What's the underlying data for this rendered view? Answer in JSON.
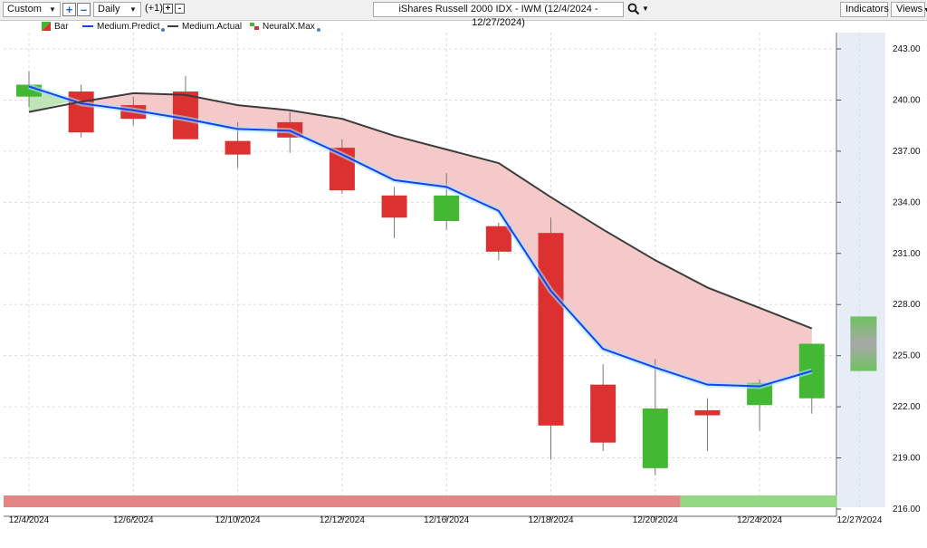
{
  "toolbar": {
    "range_value": "Custom",
    "period_value": "Daily",
    "offset_label": "(+1)",
    "symbol_value": "iShares Russell 2000 IDX - IWM (12/4/2024 - 12/27/2024)",
    "indicators_label": "Indicators",
    "views_label": "Views",
    "icons": [
      "plus-icon",
      "minus-icon",
      "search-icon",
      "chevron-down-icon"
    ]
  },
  "legend": {
    "bar": "Bar",
    "predict": "Medium.Predict",
    "actual": "Medium.Actual",
    "neural": "NeuralX.Max"
  },
  "colors": {
    "up": "#43b833",
    "down": "#dd3030",
    "predict": "#1a3ff0",
    "actual": "#3c3c3c",
    "band_down": "#f4c6c6",
    "band_up": "#bfe4b6",
    "forecast_bg": "#e6edf7",
    "strip_down": "#e58686",
    "strip_up": "#93d885"
  },
  "chart_data": {
    "type": "candlestick",
    "xlabels": [
      "12/4/2024",
      "12/6/2024",
      "12/10/2024",
      "12/12/2024",
      "12/16/2024",
      "12/18/2024",
      "12/20/2024",
      "12/24/2024",
      "12/27/2024"
    ],
    "ylabels": [
      "243.00",
      "240.00",
      "237.00",
      "234.00",
      "231.00",
      "228.00",
      "225.00",
      "222.00",
      "219.00",
      "216.00"
    ],
    "ylim": [
      216,
      243
    ],
    "candles": [
      {
        "date": "12/4/2024",
        "open": 240.2,
        "high": 241.7,
        "low": 239.6,
        "close": 240.9
      },
      {
        "date": "12/5/2024",
        "open": 240.5,
        "high": 240.9,
        "low": 237.8,
        "close": 238.1
      },
      {
        "date": "12/6/2024",
        "open": 239.7,
        "high": 240.2,
        "low": 238.5,
        "close": 238.9
      },
      {
        "date": "12/9/2024",
        "open": 240.5,
        "high": 241.4,
        "low": 237.7,
        "close": 237.7
      },
      {
        "date": "12/10/2024",
        "open": 237.6,
        "high": 238.7,
        "low": 236.0,
        "close": 236.8
      },
      {
        "date": "12/11/2024",
        "open": 238.7,
        "high": 239.3,
        "low": 236.9,
        "close": 237.8
      },
      {
        "date": "12/12/2024",
        "open": 237.2,
        "high": 237.7,
        "low": 234.5,
        "close": 234.7
      },
      {
        "date": "12/13/2024",
        "open": 234.4,
        "high": 234.9,
        "low": 231.9,
        "close": 233.1
      },
      {
        "date": "12/16/2024",
        "open": 232.9,
        "high": 235.7,
        "low": 232.4,
        "close": 234.4
      },
      {
        "date": "12/17/2024",
        "open": 232.6,
        "high": 232.8,
        "low": 230.6,
        "close": 231.1
      },
      {
        "date": "12/18/2024",
        "open": 232.2,
        "high": 233.1,
        "low": 218.9,
        "close": 220.9
      },
      {
        "date": "12/19/2024",
        "open": 223.3,
        "high": 224.5,
        "low": 219.4,
        "close": 219.9
      },
      {
        "date": "12/20/2024",
        "open": 218.4,
        "high": 224.8,
        "low": 218.0,
        "close": 221.9
      },
      {
        "date": "12/23/2024",
        "open": 221.8,
        "high": 222.5,
        "low": 219.4,
        "close": 221.5
      },
      {
        "date": "12/24/2024",
        "open": 222.1,
        "high": 223.6,
        "low": 220.6,
        "close": 223.4
      },
      {
        "date": "12/26/2024",
        "open": 222.5,
        "high": 225.7,
        "low": 221.6,
        "close": 225.7
      }
    ],
    "forecast": {
      "date": "12/27/2024",
      "low": 224.1,
      "high": 227.3
    },
    "medium_predict": [
      240.8,
      239.8,
      239.4,
      238.9,
      238.3,
      238.2,
      236.8,
      235.3,
      234.9,
      233.5,
      228.8,
      225.4,
      224.3,
      223.3,
      223.2,
      224.1
    ],
    "medium_actual": [
      239.3,
      239.9,
      240.4,
      240.3,
      239.7,
      239.4,
      238.9,
      237.9,
      237.1,
      236.3,
      234.3,
      232.4,
      230.6,
      229.0,
      227.8,
      226.6
    ],
    "neural_strip": {
      "down_until_index": 12,
      "up_until_index": 15
    },
    "grid": true
  }
}
